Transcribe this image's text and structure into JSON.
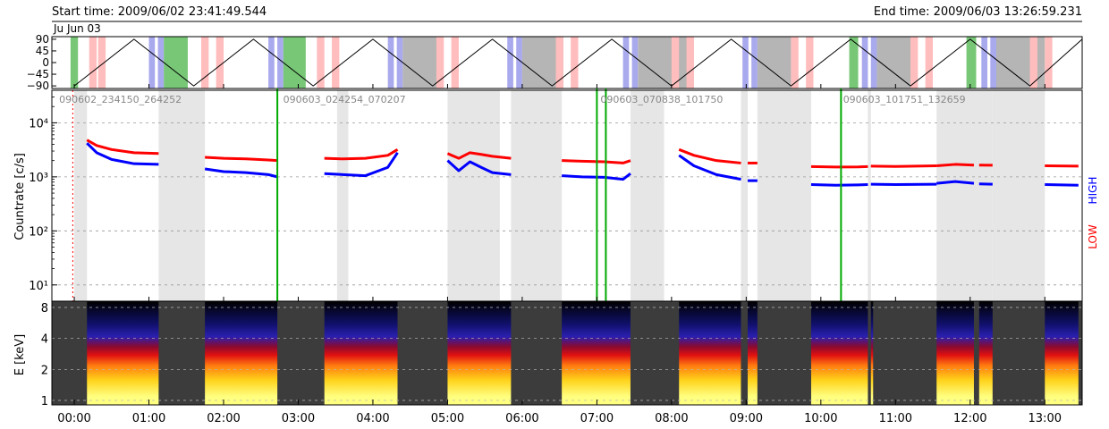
{
  "header": {
    "start_label": "Start time: 2009/06/02 23:41:49.544",
    "end_label": "End time: 2009/06/03 13:26:59.231",
    "date_label": "Ju Jun 03"
  },
  "chart_data": [
    {
      "type": "line",
      "panel": "attitude",
      "yticks": [
        90,
        45,
        0,
        -45,
        -90
      ],
      "ylim": [
        -100,
        100
      ],
      "xlim_hours": [
        -0.3,
        13.5
      ],
      "series": [
        {
          "values_x_hours": [
            0.0,
            0.8,
            1.6,
            2.4,
            3.2,
            4.0,
            4.8,
            5.6,
            6.4,
            7.2,
            8.0,
            8.8,
            9.6,
            10.4,
            11.2,
            12.0,
            12.8,
            13.5
          ],
          "values_y": [
            -90,
            90,
            -90,
            90,
            -90,
            90,
            -90,
            90,
            -90,
            90,
            -90,
            90,
            -90,
            90,
            -90,
            90,
            -90,
            90
          ]
        }
      ],
      "bands": [
        {
          "x0": -0.05,
          "x1": 0.05,
          "kind": "green"
        },
        {
          "x0": 0.2,
          "x1": 0.3,
          "kind": "pink"
        },
        {
          "x0": 0.32,
          "x1": 0.42,
          "kind": "pink"
        },
        {
          "x0": 1.0,
          "x1": 1.08,
          "kind": "blue"
        },
        {
          "x0": 1.12,
          "x1": 1.2,
          "kind": "blue"
        },
        {
          "x0": 1.2,
          "x1": 1.52,
          "kind": "green"
        },
        {
          "x0": 1.7,
          "x1": 1.8,
          "kind": "pink"
        },
        {
          "x0": 1.9,
          "x1": 2.0,
          "kind": "pink"
        },
        {
          "x0": 2.6,
          "x1": 2.68,
          "kind": "blue"
        },
        {
          "x0": 2.72,
          "x1": 2.8,
          "kind": "blue"
        },
        {
          "x0": 2.8,
          "x1": 3.1,
          "kind": "green"
        },
        {
          "x0": 3.25,
          "x1": 3.35,
          "kind": "pink"
        },
        {
          "x0": 3.45,
          "x1": 3.55,
          "kind": "pink"
        },
        {
          "x0": 4.2,
          "x1": 4.28,
          "kind": "blue"
        },
        {
          "x0": 4.32,
          "x1": 4.4,
          "kind": "blue"
        },
        {
          "x0": 4.4,
          "x1": 4.9,
          "kind": "gray"
        },
        {
          "x0": 4.85,
          "x1": 4.95,
          "kind": "pink"
        },
        {
          "x0": 5.05,
          "x1": 5.15,
          "kind": "pink"
        },
        {
          "x0": 5.8,
          "x1": 5.88,
          "kind": "blue"
        },
        {
          "x0": 5.92,
          "x1": 6.0,
          "kind": "blue"
        },
        {
          "x0": 6.0,
          "x1": 6.55,
          "kind": "gray"
        },
        {
          "x0": 6.45,
          "x1": 6.55,
          "kind": "pink"
        },
        {
          "x0": 6.65,
          "x1": 6.75,
          "kind": "pink"
        },
        {
          "x0": 7.35,
          "x1": 7.43,
          "kind": "blue"
        },
        {
          "x0": 7.47,
          "x1": 7.55,
          "kind": "blue"
        },
        {
          "x0": 7.55,
          "x1": 8.3,
          "kind": "gray"
        },
        {
          "x0": 8.0,
          "x1": 8.1,
          "kind": "pink"
        },
        {
          "x0": 8.2,
          "x1": 8.3,
          "kind": "pink"
        },
        {
          "x0": 8.95,
          "x1": 9.03,
          "kind": "blue"
        },
        {
          "x0": 9.07,
          "x1": 9.15,
          "kind": "blue"
        },
        {
          "x0": 9.15,
          "x1": 9.6,
          "kind": "gray"
        },
        {
          "x0": 9.6,
          "x1": 9.7,
          "kind": "pink"
        },
        {
          "x0": 9.8,
          "x1": 9.9,
          "kind": "pink"
        },
        {
          "x0": 10.38,
          "x1": 10.5,
          "kind": "green"
        },
        {
          "x0": 10.55,
          "x1": 10.63,
          "kind": "blue"
        },
        {
          "x0": 10.67,
          "x1": 10.75,
          "kind": "blue"
        },
        {
          "x0": 10.75,
          "x1": 11.2,
          "kind": "gray"
        },
        {
          "x0": 11.2,
          "x1": 11.3,
          "kind": "pink"
        },
        {
          "x0": 11.4,
          "x1": 11.5,
          "kind": "pink"
        },
        {
          "x0": 11.95,
          "x1": 12.08,
          "kind": "green"
        },
        {
          "x0": 12.15,
          "x1": 12.23,
          "kind": "blue"
        },
        {
          "x0": 12.27,
          "x1": 12.35,
          "kind": "blue"
        },
        {
          "x0": 12.35,
          "x1": 13.0,
          "kind": "gray"
        },
        {
          "x0": 12.8,
          "x1": 12.9,
          "kind": "pink"
        },
        {
          "x0": 13.0,
          "x1": 13.1,
          "kind": "pink"
        }
      ]
    },
    {
      "type": "line",
      "panel": "countrate",
      "ylabel": "Countrate [c/s]",
      "ytick_labels": [
        "10¹",
        "10²",
        "10³",
        "10⁴"
      ],
      "ytick_values": [
        10,
        100,
        1000,
        10000
      ],
      "ylog": true,
      "ylim": [
        5,
        40000
      ],
      "xlim_hours": [
        -0.3,
        13.5
      ],
      "orbit_labels": [
        {
          "text": "090602_234150_264252",
          "x_hours": -0.25
        },
        {
          "text": "090603_024254_070207",
          "x_hours": 2.75
        },
        {
          "text": "090603_070838_101750",
          "x_hours": 7.0
        },
        {
          "text": "090603_101751_132659",
          "x_hours": 10.25
        }
      ],
      "right_labels": {
        "high": "HIGH",
        "low": "LOW"
      },
      "colors": {
        "high": "#0000ff",
        "low": "#ff0000",
        "event": "#00aa00",
        "gap": "#e6e6e6"
      },
      "gaps_hours": [
        [
          0.0,
          0.17
        ],
        [
          1.13,
          1.75
        ],
        [
          3.52,
          3.67
        ],
        [
          5.0,
          5.7
        ],
        [
          5.85,
          6.53
        ],
        [
          7.45,
          7.9
        ],
        [
          8.93,
          9.02
        ],
        [
          9.15,
          9.87
        ],
        [
          10.63,
          10.67
        ],
        [
          11.55,
          12.3
        ],
        [
          12.05,
          12.12
        ],
        [
          12.3,
          13.0
        ]
      ],
      "event_lines_hours": [
        2.72,
        7.0,
        7.12,
        10.27
      ],
      "dashed_line_hours": -0.02,
      "series": [
        {
          "name": "LOW",
          "segments": [
            {
              "x": [
                0.17,
                0.3,
                0.5,
                0.8,
                1.13
              ],
              "y": [
                4800,
                3800,
                3200,
                2800,
                2700
              ]
            },
            {
              "x": [
                1.75,
                2.0,
                2.3,
                2.6,
                2.72
              ],
              "y": [
                2300,
                2200,
                2150,
                2050,
                2000
              ]
            },
            {
              "x": [
                3.35,
                3.6,
                3.9,
                4.2,
                4.33
              ],
              "y": [
                2200,
                2150,
                2200,
                2500,
                3200
              ]
            },
            {
              "x": [
                5.0,
                5.15,
                5.3,
                5.45,
                5.6,
                5.85
              ],
              "y": [
                2700,
                2200,
                2800,
                2600,
                2400,
                2200
              ]
            },
            {
              "x": [
                6.53,
                6.8,
                7.1,
                7.35,
                7.45
              ],
              "y": [
                2000,
                1950,
                1900,
                1800,
                2000
              ]
            },
            {
              "x": [
                8.1,
                8.3,
                8.6,
                8.93
              ],
              "y": [
                3200,
                2500,
                2000,
                1800
              ]
            },
            {
              "x": [
                9.02,
                9.15
              ],
              "y": [
                1800,
                1800
              ]
            },
            {
              "x": [
                9.87,
                10.2,
                10.5,
                10.63
              ],
              "y": [
                1550,
                1520,
                1530,
                1550
              ]
            },
            {
              "x": [
                10.67,
                11.0,
                11.55
              ],
              "y": [
                1580,
                1560,
                1600
              ]
            },
            {
              "x": [
                11.55,
                11.8,
                12.05
              ],
              "y": [
                1600,
                1700,
                1650
              ]
            },
            {
              "x": [
                12.12,
                12.3
              ],
              "y": [
                1650,
                1640
              ]
            },
            {
              "x": [
                13.0,
                13.45
              ],
              "y": [
                1600,
                1580
              ]
            }
          ]
        },
        {
          "name": "HIGH",
          "segments": [
            {
              "x": [
                0.17,
                0.3,
                0.5,
                0.8,
                1.13
              ],
              "y": [
                4200,
                2800,
                2100,
                1750,
                1700
              ]
            },
            {
              "x": [
                1.75,
                2.0,
                2.3,
                2.6,
                2.72
              ],
              "y": [
                1400,
                1250,
                1200,
                1100,
                1000
              ]
            },
            {
              "x": [
                3.35,
                3.6,
                3.9,
                4.2,
                4.33
              ],
              "y": [
                1150,
                1100,
                1050,
                1500,
                2800
              ]
            },
            {
              "x": [
                5.0,
                5.15,
                5.3,
                5.45,
                5.6,
                5.85
              ],
              "y": [
                2000,
                1300,
                1900,
                1500,
                1200,
                1100
              ]
            },
            {
              "x": [
                6.53,
                6.8,
                7.1,
                7.35,
                7.45
              ],
              "y": [
                1050,
                1000,
                980,
                900,
                1150
              ]
            },
            {
              "x": [
                8.1,
                8.3,
                8.6,
                8.93
              ],
              "y": [
                2500,
                1600,
                1100,
                900
              ]
            },
            {
              "x": [
                9.02,
                9.15
              ],
              "y": [
                850,
                850
              ]
            },
            {
              "x": [
                9.87,
                10.2,
                10.5,
                10.63
              ],
              "y": [
                720,
                700,
                710,
                720
              ]
            },
            {
              "x": [
                10.67,
                11.0,
                11.55
              ],
              "y": [
                730,
                720,
                730
              ]
            },
            {
              "x": [
                11.55,
                11.8,
                12.05
              ],
              "y": [
                760,
                820,
                760
              ]
            },
            {
              "x": [
                12.12,
                12.3
              ],
              "y": [
                740,
                730
              ]
            },
            {
              "x": [
                13.0,
                13.45
              ],
              "y": [
                720,
                700
              ]
            }
          ]
        }
      ]
    },
    {
      "type": "heatmap",
      "panel": "spectrogram",
      "ylabel": "E [keV]",
      "ytick_labels": [
        "1",
        "2",
        "4",
        "8"
      ],
      "ytick_values": [
        1,
        2,
        4,
        8
      ],
      "ylog": true,
      "xlim_hours": [
        -0.3,
        13.5
      ],
      "xtick_labels": [
        "00:00",
        "01:00",
        "02:00",
        "03:00",
        "04:00",
        "05:00",
        "06:00",
        "07:00",
        "08:00",
        "09:00",
        "10:00",
        "11:00",
        "12:00",
        "13:00"
      ],
      "data_intervals_hours": [
        [
          0.17,
          1.13
        ],
        [
          1.75,
          2.72
        ],
        [
          3.35,
          4.33
        ],
        [
          5.0,
          5.85
        ],
        [
          6.53,
          7.45
        ],
        [
          8.1,
          8.93
        ],
        [
          9.02,
          9.15
        ],
        [
          9.87,
          10.63
        ],
        [
          10.67,
          10.7
        ],
        [
          11.55,
          12.05
        ],
        [
          12.12,
          12.3
        ],
        [
          13.0,
          13.45
        ]
      ],
      "colors": {
        "no_data": "#3c3c3c",
        "scale": [
          "#000000",
          "#10106a",
          "#2a1fb0",
          "#8b0a30",
          "#e01010",
          "#ff7a10",
          "#ffd21a",
          "#ffff80"
        ]
      }
    }
  ]
}
